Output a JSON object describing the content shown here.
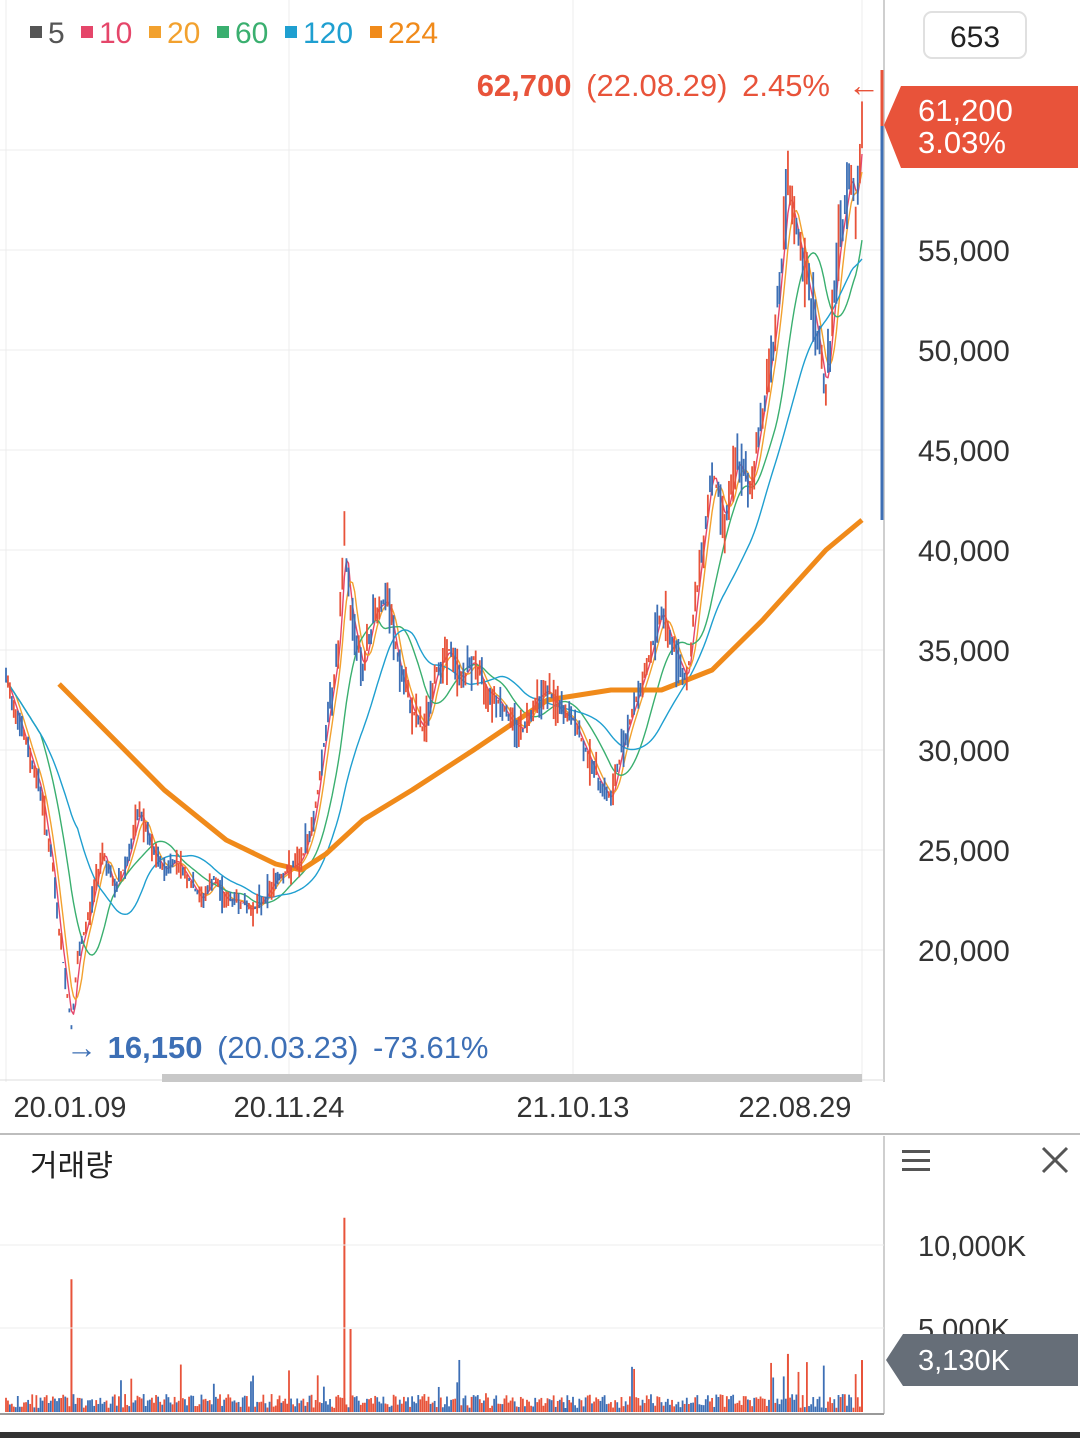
{
  "chart_data": {
    "type": "line",
    "legend": [
      {
        "label": "5",
        "color": "#555555"
      },
      {
        "label": "10",
        "color": "#e5466a"
      },
      {
        "label": "20",
        "color": "#f2a12e"
      },
      {
        "label": "60",
        "color": "#3aaf6f"
      },
      {
        "label": "120",
        "color": "#1f9fd0"
      },
      {
        "label": "224",
        "color": "#f08a1a"
      }
    ],
    "period_box": "653",
    "price_axis": {
      "ticks": [
        "55,000",
        "50,000",
        "45,000",
        "40,000",
        "35,000",
        "30,000",
        "25,000",
        "20,000"
      ],
      "ylim": [
        15000,
        66000
      ]
    },
    "current_price": {
      "price": "61,200",
      "change": "3.03%",
      "color": "#e8533a"
    },
    "high_annotation": {
      "price": "62,700",
      "date": "(22.08.29)",
      "change": "2.45%",
      "arrow": "←"
    },
    "low_annotation": {
      "arrow": "→",
      "price": "16,150",
      "date": "(20.03.23)",
      "change": "-73.61%"
    },
    "x_ticks": [
      "20.01.09",
      "20.11.24",
      "21.10.13",
      "22.08.29"
    ],
    "price_series": [
      [
        "20.01.09",
        33500
      ],
      [
        "20.01.20",
        32000
      ],
      [
        "20.02.03",
        30000
      ],
      [
        "20.02.17",
        28000
      ],
      [
        "20.03.02",
        24000
      ],
      [
        "20.03.09",
        21000
      ],
      [
        "20.03.23",
        16150
      ],
      [
        "20.03.30",
        19500
      ],
      [
        "20.04.13",
        22000
      ],
      [
        "20.04.27",
        25000
      ],
      [
        "20.05.11",
        23000
      ],
      [
        "20.05.25",
        24500
      ],
      [
        "20.06.08",
        27000
      ],
      [
        "20.06.22",
        25000
      ],
      [
        "20.07.06",
        24000
      ],
      [
        "20.07.20",
        24500
      ],
      [
        "20.08.03",
        23500
      ],
      [
        "20.08.17",
        22500
      ],
      [
        "20.08.31",
        23500
      ],
      [
        "20.09.14",
        22500
      ],
      [
        "20.09.28",
        22500
      ],
      [
        "20.10.12",
        22000
      ],
      [
        "20.10.26",
        22500
      ],
      [
        "20.11.09",
        23500
      ],
      [
        "20.11.24",
        24000
      ],
      [
        "20.12.08",
        24500
      ],
      [
        "20.12.22",
        26500
      ],
      [
        "21.01.05",
        31000
      ],
      [
        "21.01.19",
        35000
      ],
      [
        "21.01.26",
        40500
      ],
      [
        "21.02.02",
        37000
      ],
      [
        "21.02.16",
        34000
      ],
      [
        "21.03.02",
        37000
      ],
      [
        "21.03.16",
        37500
      ],
      [
        "21.03.30",
        34000
      ],
      [
        "21.04.13",
        32000
      ],
      [
        "21.04.27",
        31000
      ],
      [
        "21.05.11",
        34000
      ],
      [
        "21.05.25",
        35000
      ],
      [
        "21.06.08",
        33500
      ],
      [
        "21.06.22",
        34500
      ],
      [
        "21.07.06",
        33000
      ],
      [
        "21.07.20",
        32500
      ],
      [
        "21.08.03",
        31500
      ],
      [
        "21.08.17",
        31000
      ],
      [
        "21.08.31",
        32500
      ],
      [
        "21.09.14",
        33000
      ],
      [
        "21.09.28",
        32000
      ],
      [
        "21.10.13",
        31500
      ],
      [
        "21.10.27",
        30000
      ],
      [
        "21.11.10",
        28500
      ],
      [
        "21.11.24",
        27500
      ],
      [
        "21.12.08",
        30500
      ],
      [
        "21.12.22",
        32500
      ],
      [
        "22.01.05",
        34500
      ],
      [
        "22.01.19",
        37000
      ],
      [
        "22.02.02",
        35000
      ],
      [
        "22.02.16",
        33500
      ],
      [
        "22.03.02",
        39000
      ],
      [
        "22.03.16",
        44000
      ],
      [
        "22.03.30",
        41500
      ],
      [
        "22.04.13",
        44500
      ],
      [
        "22.04.27",
        43000
      ],
      [
        "22.05.11",
        47000
      ],
      [
        "22.05.25",
        51000
      ],
      [
        "22.06.08",
        58000
      ],
      [
        "22.06.22",
        55000
      ],
      [
        "22.07.06",
        52000
      ],
      [
        "22.07.20",
        48000
      ],
      [
        "22.08.03",
        55000
      ],
      [
        "22.08.17",
        59000
      ],
      [
        "22.08.22",
        57000
      ],
      [
        "22.08.29",
        61200
      ]
    ],
    "ma224_series": [
      [
        "20.03.09",
        33300
      ],
      [
        "20.05.11",
        30500
      ],
      [
        "20.07.06",
        28000
      ],
      [
        "20.09.14",
        25500
      ],
      [
        "20.11.09",
        24300
      ],
      [
        "20.12.08",
        24000
      ],
      [
        "21.01.05",
        24800
      ],
      [
        "21.02.16",
        26500
      ],
      [
        "21.04.13",
        28000
      ],
      [
        "21.06.22",
        30000
      ],
      [
        "21.09.14",
        32500
      ],
      [
        "21.11.24",
        33000
      ],
      [
        "22.01.19",
        33000
      ],
      [
        "22.03.16",
        34000
      ],
      [
        "22.05.11",
        36500
      ],
      [
        "22.07.20",
        40000
      ],
      [
        "22.08.29",
        41500
      ]
    ]
  },
  "volume_panel": {
    "title": "거래량",
    "ticks": [
      "10,000K",
      "5,000K"
    ],
    "current": "3,130K",
    "current_color": "#666e78",
    "volumes_k": [
      [
        "20.03.23",
        8000
      ],
      [
        "21.01.26",
        11700
      ],
      [
        "21.02.02",
        5000
      ],
      [
        "22.06.08",
        3500
      ],
      [
        "22.08.29",
        3130
      ]
    ],
    "menu_icon": "hamburger-menu-icon",
    "close_icon": "close-icon"
  }
}
